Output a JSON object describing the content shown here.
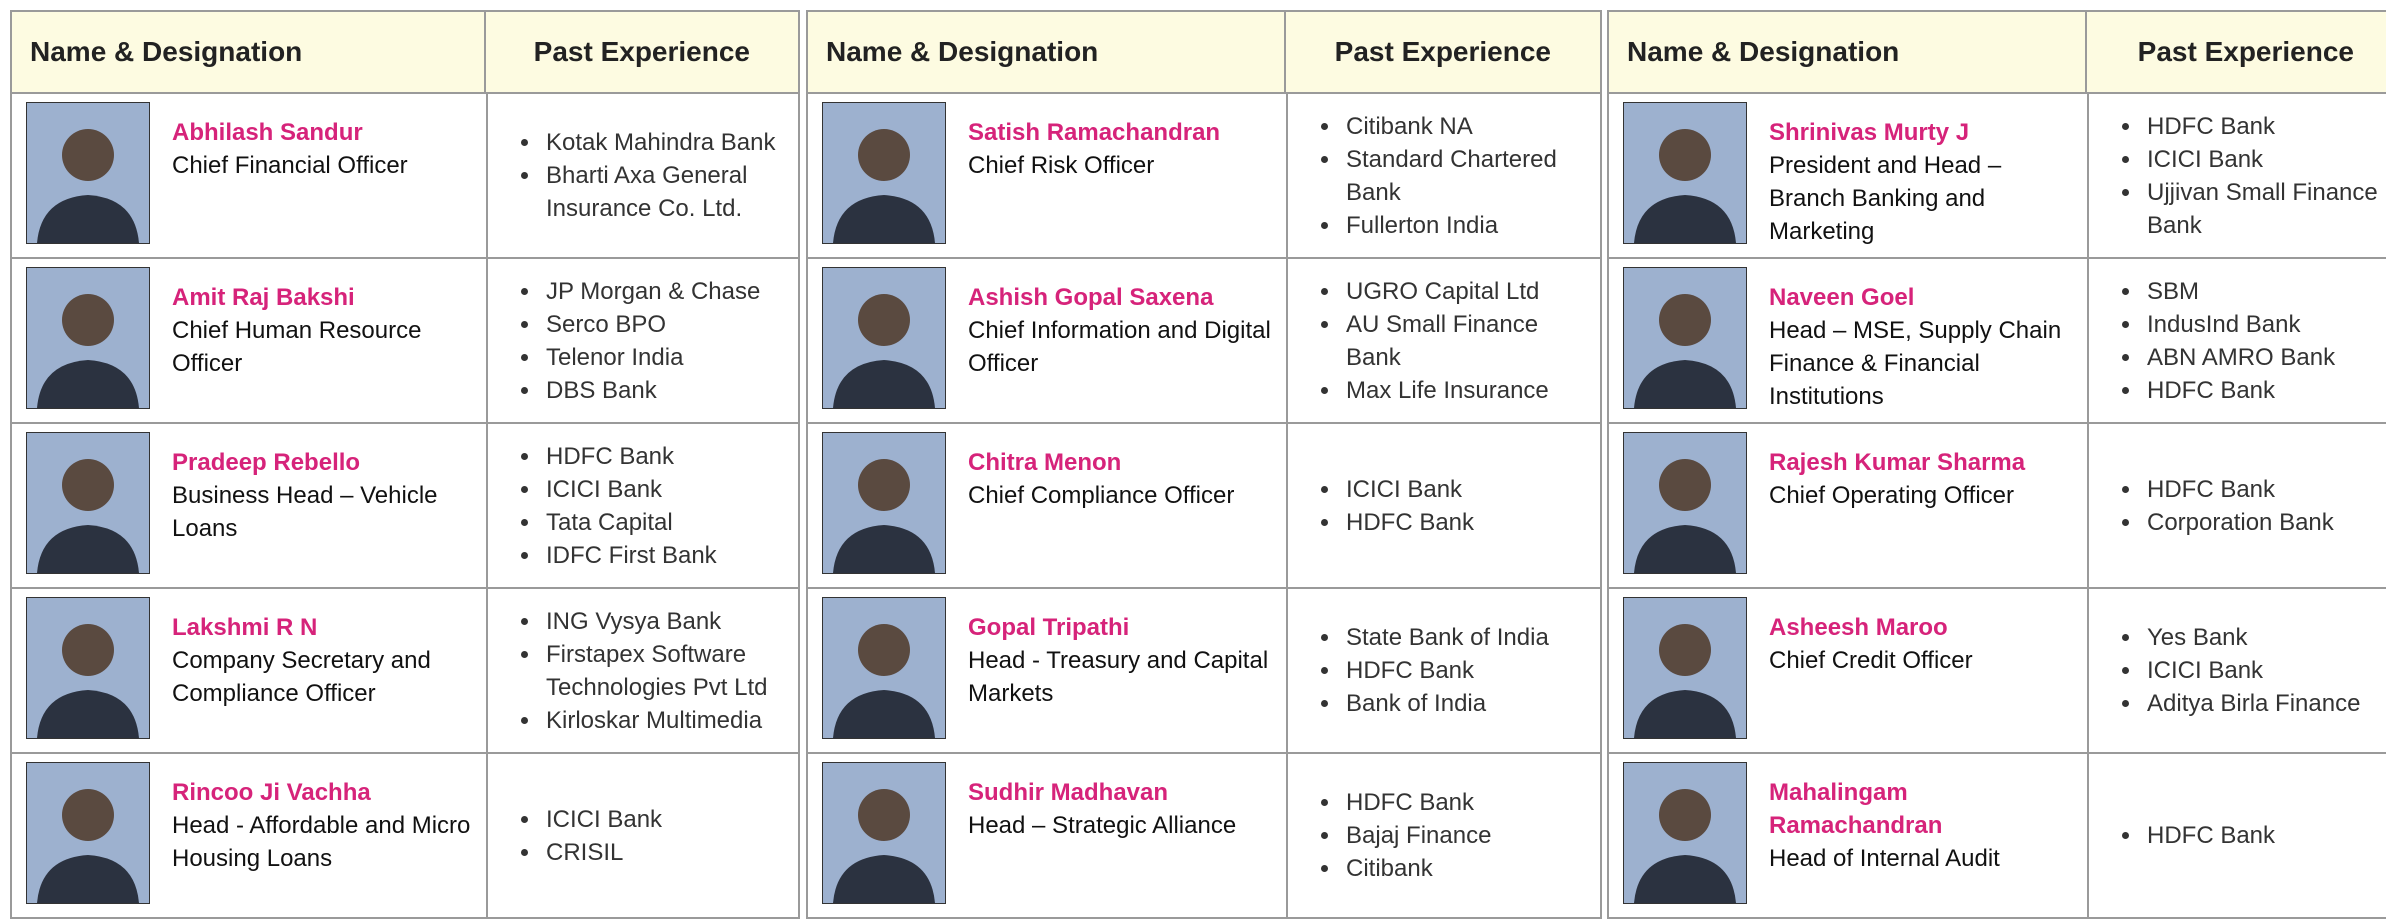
{
  "tables": [
    {
      "headers": [
        "Name & Designation",
        "Past Experience"
      ],
      "rows": [
        {
          "name": "Abhilash Sandur",
          "designation": "Chief Financial Officer",
          "experience": [
            "Kotak Mahindra Bank",
            "Bharti Axa General Insurance Co. Ltd."
          ]
        },
        {
          "name": "Amit Raj Bakshi",
          "designation": "Chief Human Resource Officer",
          "experience": [
            "JP Morgan & Chase",
            "Serco BPO",
            "Telenor India",
            "DBS Bank"
          ]
        },
        {
          "name": "Pradeep Rebello",
          "designation": "Business Head – Vehicle Loans",
          "experience": [
            "HDFC Bank",
            "ICICI Bank",
            "Tata Capital",
            "IDFC First Bank"
          ]
        },
        {
          "name": "Lakshmi R N",
          "designation": "Company Secretary and Compliance Officer",
          "experience": [
            "ING Vysya Bank",
            "Firstapex Software Technologies Pvt Ltd",
            "Kirloskar Multimedia"
          ]
        },
        {
          "name": "Rincoo Ji Vachha",
          "designation": "Head - Affordable and Micro Housing Loans",
          "experience": [
            "ICICI Bank",
            "CRISIL"
          ]
        }
      ]
    },
    {
      "headers": [
        "Name & Designation",
        "Past Experience"
      ],
      "rows": [
        {
          "name": "Satish Ramachandran",
          "designation": "Chief Risk Officer",
          "experience": [
            "Citibank NA",
            "Standard Chartered Bank",
            "Fullerton India"
          ]
        },
        {
          "name": "Ashish Gopal Saxena",
          "designation": "Chief Information and Digital Officer",
          "experience": [
            "UGRO Capital Ltd",
            "AU Small Finance Bank",
            "Max Life Insurance"
          ]
        },
        {
          "name": "Chitra Menon",
          "designation": "Chief Compliance Officer",
          "experience": [
            "ICICI Bank",
            "HDFC Bank"
          ]
        },
        {
          "name": "Gopal Tripathi",
          "designation": "Head - Treasury and Capital Markets",
          "experience": [
            "State Bank of India",
            "HDFC Bank",
            "Bank of India"
          ]
        },
        {
          "name": "Sudhir Madhavan",
          "designation": "Head – Strategic Alliance",
          "experience": [
            "HDFC Bank",
            "Bajaj Finance",
            "Citibank"
          ]
        }
      ]
    },
    {
      "headers": [
        "Name & Designation",
        "Past Experience"
      ],
      "rows": [
        {
          "name": "Shrinivas Murty J",
          "designation": "President and Head – Branch Banking and Marketing",
          "experience": [
            "HDFC Bank",
            "ICICI Bank",
            "Ujjivan Small Finance Bank"
          ]
        },
        {
          "name": "Naveen Goel",
          "designation": "Head – MSE, Supply Chain Finance & Financial Institutions",
          "experience": [
            "SBM",
            "IndusInd Bank",
            "ABN AMRO Bank",
            "HDFC Bank"
          ]
        },
        {
          "name": "Rajesh Kumar Sharma",
          "designation": "Chief Operating Officer",
          "experience": [
            "HDFC Bank",
            "Corporation Bank"
          ]
        },
        {
          "name": "Asheesh Maroo",
          "designation": "Chief Credit Officer",
          "experience": [
            "Yes Bank",
            "ICICI Bank",
            "Aditya Birla Finance"
          ]
        },
        {
          "name": "Mahalingam Ramachandran",
          "designation": "Head of Internal Audit",
          "experience": [
            "HDFC Bank"
          ]
        }
      ]
    }
  ]
}
